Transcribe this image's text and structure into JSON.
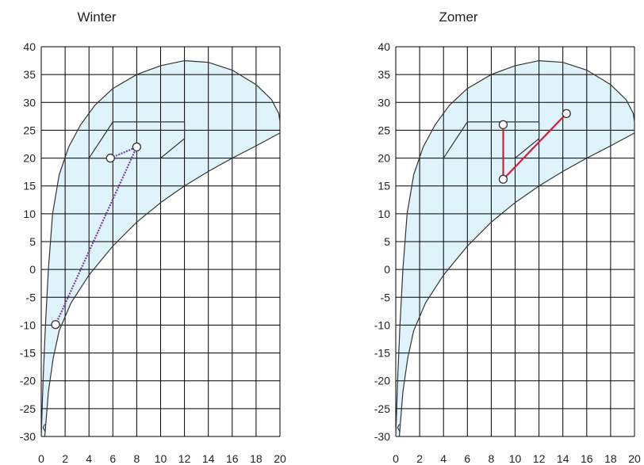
{
  "chart_data": [
    {
      "type": "line",
      "title": "Winter",
      "xlim": [
        0,
        20
      ],
      "ylim": [
        -30,
        40
      ],
      "x_ticks": [
        "0",
        "2",
        "4",
        "6",
        "8",
        "10",
        "12",
        "14",
        "16",
        "18",
        "20"
      ],
      "y_ticks": [
        "40",
        "35",
        "30",
        "25",
        "20",
        "15",
        "10",
        "5",
        "0",
        "-5",
        "-10",
        "-15",
        "-20",
        "-25",
        "-30"
      ],
      "grid": true,
      "colors": {
        "region_fill": "#dff3fb",
        "curve": "#333333",
        "grid": "#000000",
        "path": "#7a3ca0"
      },
      "comfort_zone": [
        [
          6,
          26.5
        ],
        [
          12,
          26.5
        ],
        [
          12,
          23.5
        ],
        [
          10,
          20
        ],
        [
          4,
          20
        ]
      ],
      "process_path": [
        [
          1.2,
          -9.9
        ],
        [
          8,
          22
        ],
        [
          5.8,
          20
        ]
      ]
    },
    {
      "type": "line",
      "title": "Zomer",
      "xlim": [
        0,
        20
      ],
      "ylim": [
        -30,
        40
      ],
      "x_ticks": [
        "0",
        "2",
        "4",
        "6",
        "8",
        "10",
        "12",
        "14",
        "16",
        "18",
        "20"
      ],
      "y_ticks": [
        "40",
        "35",
        "30",
        "25",
        "20",
        "15",
        "10",
        "5",
        "0",
        "-5",
        "-10",
        "-15",
        "-20",
        "-25",
        "-30"
      ],
      "grid": true,
      "colors": {
        "region_fill": "#dff3fb",
        "curve": "#333333",
        "grid": "#000000",
        "path": "#d81b3c"
      },
      "comfort_zone": [
        [
          6,
          26.5
        ],
        [
          12,
          26.5
        ],
        [
          12,
          23.5
        ],
        [
          10,
          20
        ],
        [
          4,
          20
        ]
      ],
      "process_path": [
        [
          9,
          26
        ],
        [
          9,
          16.2
        ],
        [
          14.3,
          28
        ]
      ]
    }
  ]
}
